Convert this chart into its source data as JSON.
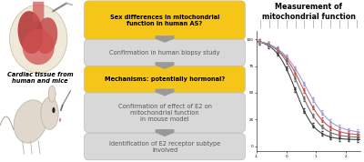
{
  "bg_color": "#ffffff",
  "box1_text": "Sex differences in mitochondrial\nfunction in human AS?",
  "box1_color": "#F5C518",
  "box1_text_color": "#000000",
  "box2_text": "Confirmation in human biopsy study",
  "box2_color": "#D8D8D8",
  "box2_text_color": "#555555",
  "box3_text": "Mechanisms: potentially hormonal?",
  "box3_color": "#F5C518",
  "box3_text_color": "#000000",
  "box4_text": "Confirmation of effect of E2 on\nmitochondrial function\nin mouse model",
  "box4_color": "#D8D8D8",
  "box4_text_color": "#555555",
  "box5_text": "Identification of E2 receptor subtype\ninvolved",
  "box5_color": "#D8D8D8",
  "box5_text_color": "#555555",
  "arrow_color": "#999999",
  "left_label": "Cardiac tissue from\nhuman and mice",
  "chart_title": "Measurement of\nmitochondrial function",
  "chart_title_color": "#000000",
  "line_colors": [
    "#333333",
    "#666666",
    "#cc4444",
    "#9999cc"
  ],
  "header_bar_color": "#C8C8A8"
}
